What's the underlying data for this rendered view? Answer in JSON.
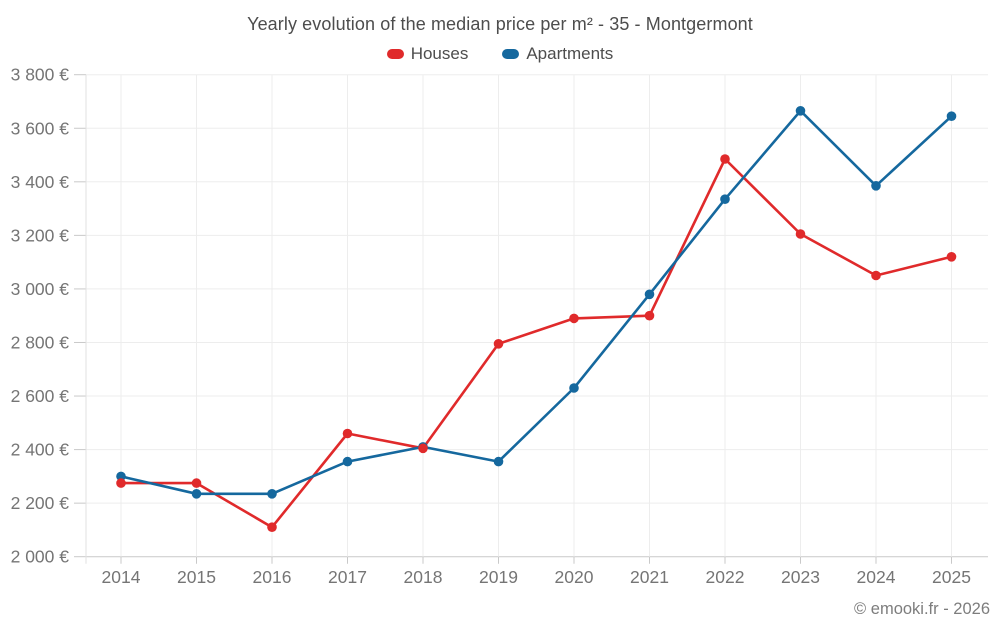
{
  "chart_data": {
    "type": "line",
    "title": "Yearly evolution of the median price per m² - 35 - Montgermont",
    "x": [
      "2014",
      "2015",
      "2016",
      "2017",
      "2018",
      "2019",
      "2020",
      "2021",
      "2022",
      "2023",
      "2024",
      "2025"
    ],
    "series": [
      {
        "name": "Houses",
        "color": "#e02a2b",
        "values": [
          2275,
          2275,
          2110,
          2460,
          2405,
          2795,
          2890,
          2900,
          3485,
          3205,
          3050,
          3120
        ]
      },
      {
        "name": "Apartments",
        "color": "#15689e",
        "values": [
          2300,
          2235,
          2235,
          2355,
          2410,
          2355,
          2630,
          2980,
          3335,
          3665,
          3385,
          3645
        ]
      }
    ],
    "ylim": [
      2000,
      3800
    ],
    "ytick_step": 200,
    "ytick_labels": [
      "2 000 €",
      "2 200 €",
      "2 400 €",
      "2 600 €",
      "2 800 €",
      "3 000 €",
      "3 200 €",
      "3 400 €",
      "3 600 €",
      "3 800 €"
    ],
    "ylabel": "",
    "xlabel": "",
    "grid": true,
    "legend_position": "top"
  },
  "footer": {
    "copyright": "© emooki.fr - 2026"
  }
}
